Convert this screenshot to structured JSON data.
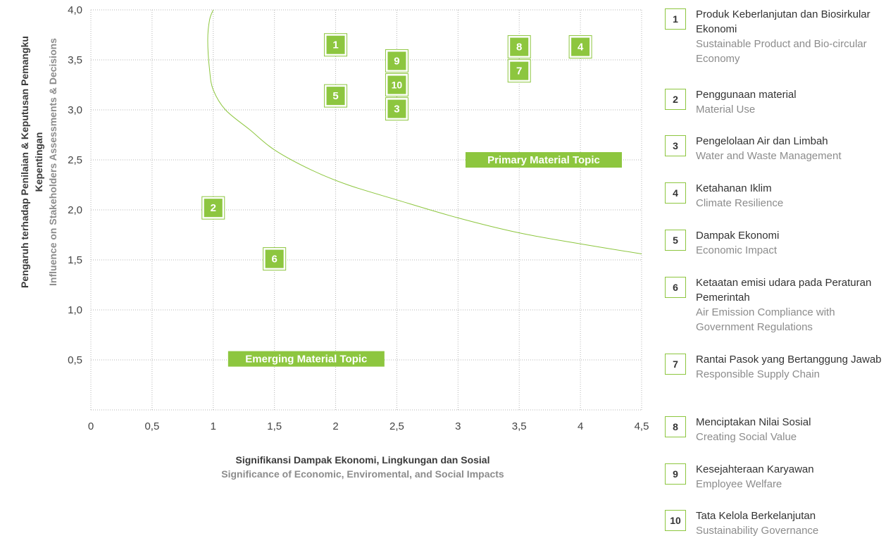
{
  "chart_data": {
    "type": "scatter",
    "xlabel": "Signifikansi Dampak Ekonomi, Lingkungan dan Sosial",
    "xlabel_en": "Significance of Economic, Enviromental, and Social Impacts",
    "ylabel": "Pengaruh terhadap Penilaian & Keputusan Pemangku Kepentingan",
    "ylabel_en": "Influence on Stakeholders Assessments & Decisions",
    "xlim": [
      0,
      4.5
    ],
    "ylim": [
      0,
      4.0
    ],
    "x_ticks": [
      "0",
      "0,5",
      "1",
      "1,5",
      "2",
      "2,5",
      "3",
      "3,5",
      "4",
      "4,5"
    ],
    "y_ticks": [
      "0,5",
      "1,0",
      "1,5",
      "2,0",
      "2,5",
      "3,0",
      "3,5",
      "4,0"
    ],
    "grid": true,
    "points": [
      {
        "label": "1",
        "x": 2.0,
        "y": 3.65
      },
      {
        "label": "2",
        "x": 1.0,
        "y": 2.02
      },
      {
        "label": "3",
        "x": 2.5,
        "y": 3.01
      },
      {
        "label": "4",
        "x": 4.0,
        "y": 3.63
      },
      {
        "label": "5",
        "x": 2.0,
        "y": 3.14
      },
      {
        "label": "6",
        "x": 1.5,
        "y": 1.51
      },
      {
        "label": "7",
        "x": 3.5,
        "y": 3.39
      },
      {
        "label": "8",
        "x": 3.5,
        "y": 3.63
      },
      {
        "label": "9",
        "x": 2.5,
        "y": 3.49
      },
      {
        "label": "10",
        "x": 2.5,
        "y": 3.25
      }
    ],
    "threshold_curve": [
      [
        1.0,
        4.0
      ],
      [
        0.97,
        3.9
      ],
      [
        0.955,
        3.7
      ],
      [
        0.97,
        3.4
      ],
      [
        1.0,
        3.2
      ],
      [
        1.1,
        3.0
      ],
      [
        1.3,
        2.8
      ],
      [
        1.5,
        2.6
      ],
      [
        1.8,
        2.4
      ],
      [
        2.1,
        2.25
      ],
      [
        2.5,
        2.1
      ],
      [
        3.0,
        1.92
      ],
      [
        3.5,
        1.77
      ],
      [
        4.0,
        1.66
      ],
      [
        4.5,
        1.56
      ]
    ],
    "annotations": [
      {
        "text": "Primary Material Topic",
        "x": 3.7,
        "y": 2.5
      },
      {
        "text": "Emerging Material Topic",
        "x": 1.76,
        "y": 0.51
      }
    ],
    "accent_color": "#8dc63f"
  },
  "legend": [
    {
      "num": "1",
      "id": "Produk Keberlanjutan dan Biosirkular Ekonomi",
      "en": "Sustainable Product and Bio-circular Economy"
    },
    {
      "num": "2",
      "id": "Penggunaan material",
      "en": "Material Use"
    },
    {
      "num": "3",
      "id": "Pengelolaan Air dan Limbah",
      "en": "Water and Waste Management"
    },
    {
      "num": "4",
      "id": "Ketahanan Iklim",
      "en": "Climate Resilience"
    },
    {
      "num": "5",
      "id": "Dampak Ekonomi",
      "en": "Economic Impact"
    },
    {
      "num": "6",
      "id": "Ketaatan emisi udara pada Peraturan Pemerintah",
      "en": "Air Emission Compliance with Government Regulations"
    },
    {
      "num": "7",
      "id": "Rantai Pasok yang Bertanggung Jawab",
      "en": "Responsible Supply Chain"
    },
    {
      "num": "8",
      "id": "Menciptakan Nilai Sosial",
      "en": "Creating Social Value"
    },
    {
      "num": "9",
      "id": "Kesejahteraan Karyawan",
      "en": "Employee Welfare"
    },
    {
      "num": "10",
      "id": "Tata Kelola Berkelanjutan",
      "en": "Sustainability Governance"
    }
  ]
}
